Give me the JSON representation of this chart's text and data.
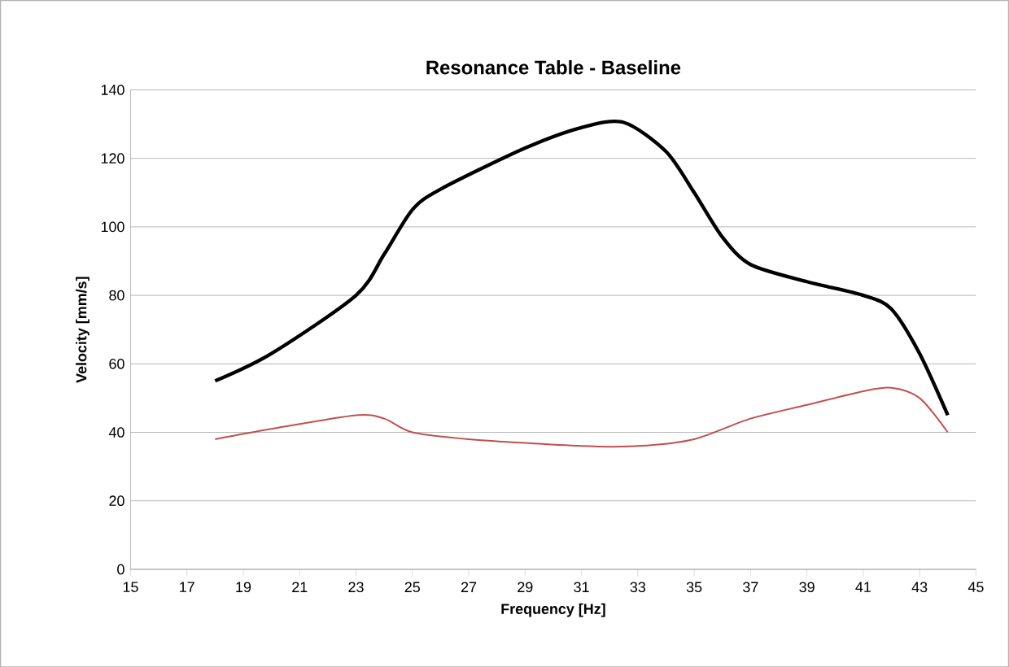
{
  "chart_data": {
    "type": "line",
    "title": "Resonance Table - Baseline",
    "xlabel": "Frequency [Hz]",
    "ylabel": "Velocity [mm/s]",
    "xlim": [
      15,
      45
    ],
    "xticks": [
      15,
      17,
      19,
      21,
      23,
      25,
      27,
      29,
      31,
      33,
      35,
      37,
      39,
      41,
      43,
      45
    ],
    "ylim": [
      0,
      140
    ],
    "yticks": [
      0,
      20,
      40,
      60,
      80,
      100,
      120,
      140
    ],
    "grid": "y",
    "marker": "none",
    "line_style": "solid",
    "series": [
      {
        "color": "#000000",
        "x": [
          18,
          20,
          23,
          24,
          25,
          26,
          29,
          31,
          32.5,
          34,
          35,
          36,
          37,
          39,
          41,
          42,
          43,
          44
        ],
        "values": [
          55,
          63,
          80,
          92,
          105,
          111,
          123,
          129,
          130.5,
          122,
          110,
          97,
          89,
          84,
          80,
          76,
          63,
          45
        ]
      },
      {
        "color": "#c0504d",
        "x": [
          18,
          20,
          23,
          24,
          25,
          27,
          31,
          33,
          35,
          37,
          39,
          41,
          42,
          43,
          44
        ],
        "values": [
          38,
          41,
          45,
          44,
          40,
          38,
          36,
          36,
          38,
          44,
          48,
          52,
          53,
          50,
          40
        ]
      }
    ]
  }
}
